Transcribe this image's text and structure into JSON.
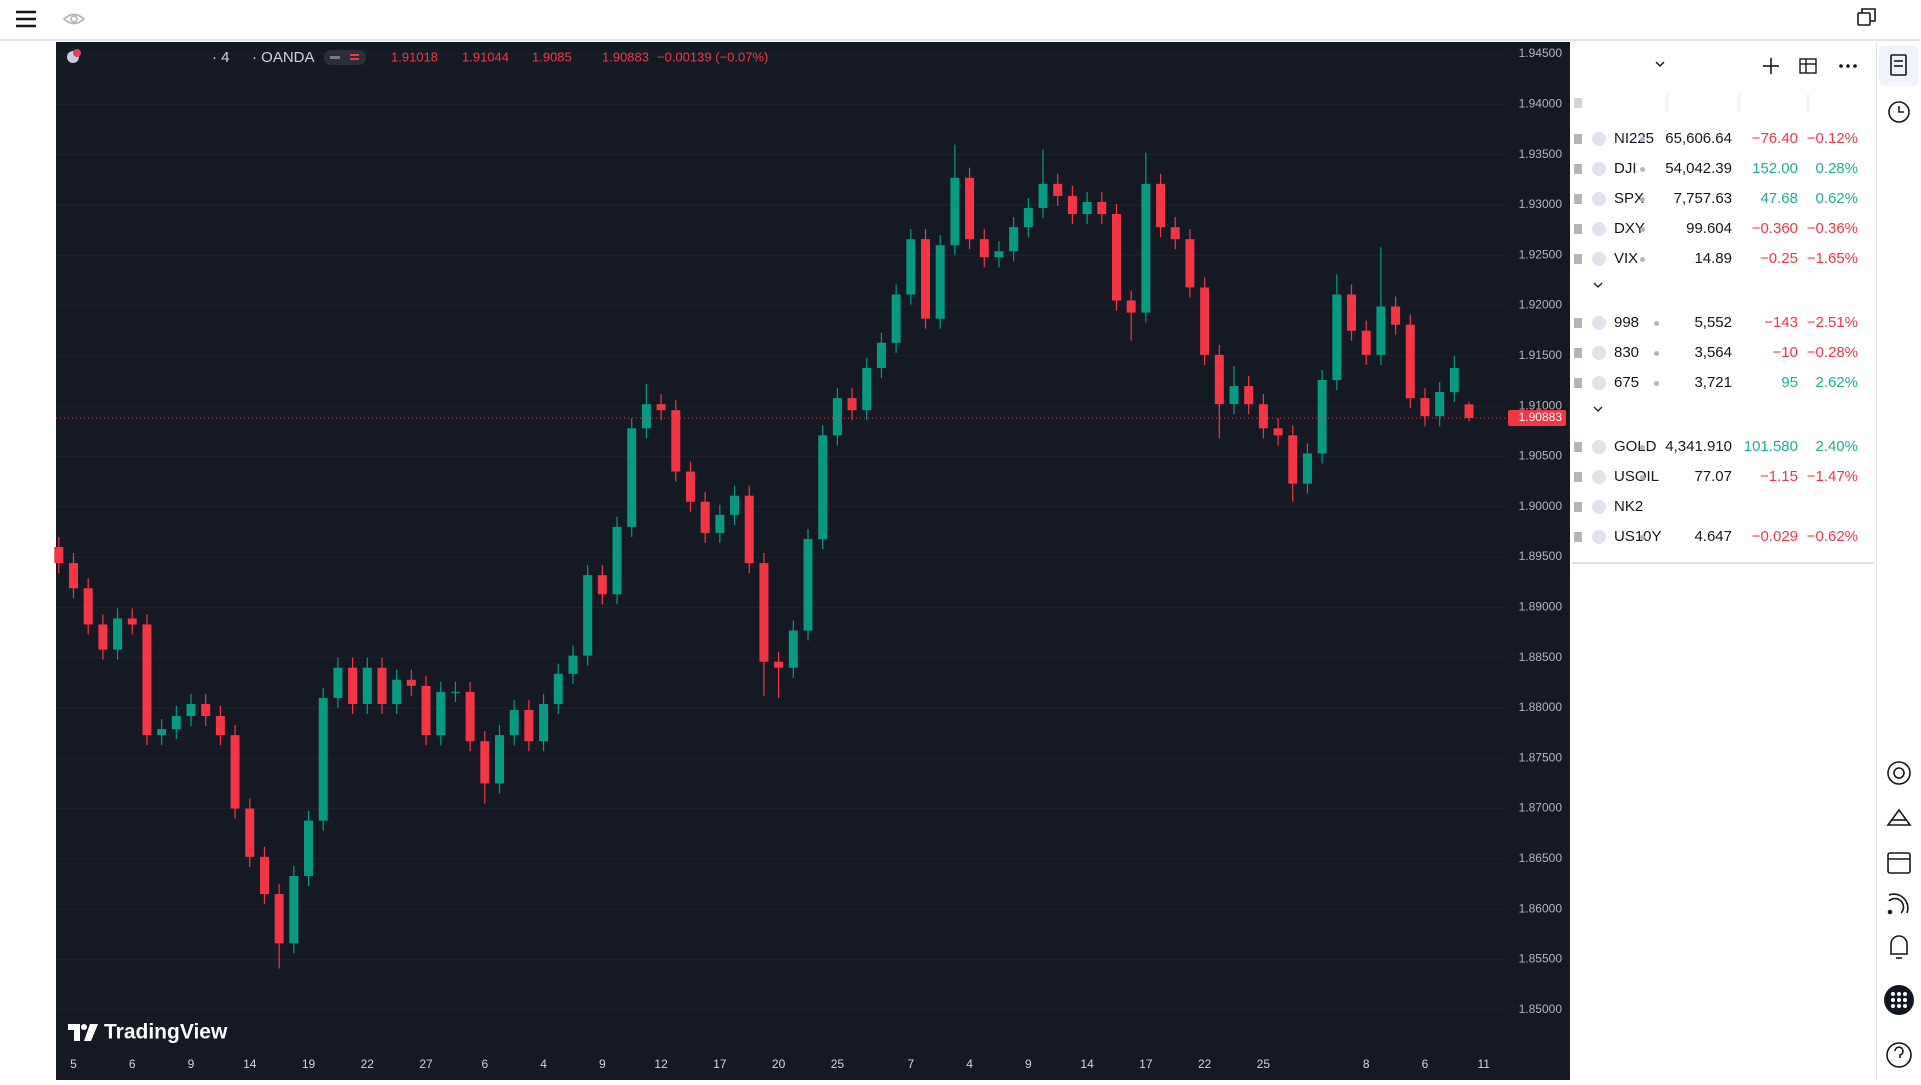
{
  "chart_data": {
    "type": "candlestick",
    "categories": [
      null,
      "5",
      null,
      null,
      null,
      "6",
      null,
      null,
      null,
      "9",
      null,
      null,
      null,
      "14",
      null,
      null,
      null,
      "19",
      null,
      null,
      null,
      "22",
      null,
      null,
      null,
      "27",
      null,
      null,
      null,
      "6",
      null,
      null,
      null,
      "4",
      null,
      null,
      null,
      "9",
      null,
      null,
      null,
      "12",
      null,
      null,
      null,
      "17",
      null,
      null,
      null,
      "20",
      null,
      null,
      null,
      "25",
      null,
      null,
      null,
      null,
      "7",
      null,
      null,
      null,
      "4",
      null,
      null,
      null,
      "9",
      null,
      null,
      null,
      "14",
      null,
      null,
      null,
      "17",
      null,
      null,
      null,
      "22",
      null,
      null,
      null,
      "25",
      null,
      null,
      null,
      null,
      null,
      null,
      "8",
      null,
      null,
      null,
      "6",
      null,
      null,
      null,
      "11"
    ],
    "open": [
      1.896,
      1.8944,
      1.8919,
      1.8883,
      1.8858,
      1.8889,
      1.8883,
      1.8773,
      1.8779,
      1.8792,
      1.8804,
      1.8792,
      1.8773,
      1.87,
      1.8652,
      1.8615,
      1.8566,
      1.8633,
      1.8688,
      1.881,
      1.884,
      1.8804,
      1.884,
      1.8804,
      1.8828,
      1.8822,
      1.8773,
      1.8816,
      1.8816,
      1.8767,
      1.8725,
      1.8773,
      1.8798,
      1.8767,
      1.8804,
      1.8834,
      1.8852,
      1.8932,
      1.8913,
      1.898,
      1.9078,
      1.9102,
      1.9096,
      1.9035,
      1.9005,
      1.8974,
      1.8992,
      1.9011,
      1.8944,
      1.8846,
      1.884,
      1.8877,
      1.8968,
      1.9071,
      1.9108,
      1.9096,
      1.9138,
      1.9163,
      1.9211,
      1.9266,
      1.9187,
      1.926,
      1.9327,
      1.9266,
      1.9248,
      1.9254,
      1.9278,
      1.9297,
      1.9321,
      1.9309,
      1.9291,
      1.9303,
      1.9291,
      1.9205,
      1.9193,
      1.9321,
      1.9278,
      1.9266,
      1.9218,
      1.9151,
      1.9102,
      1.912,
      1.9102,
      1.9078,
      1.9071,
      1.9023,
      1.9053,
      1.9126,
      1.9211,
      1.9175,
      1.9151,
      1.9199,
      1.9181,
      1.9108,
      1.909,
      1.9114,
      1.91018,
      null
    ],
    "high": [
      1.897,
      1.8954,
      1.8929,
      1.8893,
      1.8899,
      1.8899,
      1.8893,
      1.8789,
      1.8802,
      1.8814,
      1.8814,
      1.8802,
      1.8783,
      1.871,
      1.8662,
      1.8625,
      1.8643,
      1.8698,
      1.882,
      1.885,
      1.885,
      1.885,
      1.885,
      1.8838,
      1.8838,
      1.8832,
      1.8826,
      1.8826,
      1.8826,
      1.8777,
      1.8783,
      1.8808,
      1.8808,
      1.8814,
      1.8844,
      1.8862,
      1.8942,
      1.8942,
      1.899,
      1.9088,
      1.9122,
      1.9112,
      1.9106,
      1.9045,
      1.9015,
      1.9002,
      1.9021,
      1.9021,
      1.8954,
      1.8856,
      1.8887,
      1.8978,
      1.9081,
      1.9118,
      1.9118,
      1.9148,
      1.9173,
      1.9221,
      1.9276,
      1.9276,
      1.927,
      1.936,
      1.9337,
      1.9276,
      1.9264,
      1.9288,
      1.9307,
      1.9355,
      1.9331,
      1.9319,
      1.9313,
      1.9313,
      1.9301,
      1.9215,
      1.9352,
      1.9331,
      1.9288,
      1.9276,
      1.9228,
      1.9161,
      1.914,
      1.913,
      1.9112,
      1.9088,
      1.9081,
      1.9063,
      1.9136,
      1.9231,
      1.9221,
      1.9185,
      1.9258,
      1.9209,
      1.9191,
      1.9118,
      1.9124,
      1.915,
      1.91044,
      null
    ],
    "low": [
      1.8934,
      1.8909,
      1.8873,
      1.8848,
      1.8848,
      1.8873,
      1.8763,
      1.8763,
      1.8769,
      1.8782,
      1.8782,
      1.8763,
      1.869,
      1.8642,
      1.8605,
      1.8541,
      1.8556,
      1.8623,
      1.8678,
      1.88,
      1.8794,
      1.8794,
      1.8794,
      1.8794,
      1.8812,
      1.8763,
      1.8763,
      1.8806,
      1.8757,
      1.8705,
      1.8715,
      1.8763,
      1.8757,
      1.8757,
      1.8794,
      1.8824,
      1.8842,
      1.8903,
      1.8903,
      1.897,
      1.9068,
      1.9086,
      1.9025,
      1.8995,
      1.8964,
      1.8964,
      1.8982,
      1.8934,
      1.8812,
      1.881,
      1.883,
      1.8867,
      1.8958,
      1.9061,
      1.9086,
      1.9086,
      1.9128,
      1.9153,
      1.9201,
      1.9177,
      1.9177,
      1.925,
      1.9256,
      1.9238,
      1.9238,
      1.9244,
      1.9268,
      1.9287,
      1.9299,
      1.9281,
      1.9281,
      1.9281,
      1.9195,
      1.9165,
      1.9183,
      1.9268,
      1.9256,
      1.9208,
      1.9141,
      1.9068,
      1.9092,
      1.9092,
      1.9068,
      1.9061,
      1.9005,
      1.9013,
      1.9043,
      1.9116,
      1.9165,
      1.9141,
      1.9141,
      1.9171,
      1.9098,
      1.908,
      1.908,
      1.9104,
      1.9085,
      null
    ],
    "close": [
      1.8944,
      1.8919,
      1.8883,
      1.8858,
      1.8889,
      1.8883,
      1.8773,
      1.8779,
      1.8792,
      1.8804,
      1.8792,
      1.8773,
      1.87,
      1.8652,
      1.8615,
      1.8566,
      1.8633,
      1.8688,
      1.881,
      1.884,
      1.8804,
      1.884,
      1.8804,
      1.8828,
      1.8822,
      1.8773,
      1.8816,
      1.8816,
      1.8767,
      1.8725,
      1.8773,
      1.8798,
      1.8767,
      1.8804,
      1.8834,
      1.8852,
      1.8932,
      1.8913,
      1.898,
      1.9078,
      1.9102,
      1.9096,
      1.9035,
      1.9005,
      1.8974,
      1.8992,
      1.9011,
      1.8944,
      1.8846,
      1.884,
      1.8877,
      1.8968,
      1.9071,
      1.9108,
      1.9096,
      1.9138,
      1.9163,
      1.9211,
      1.9266,
      1.9187,
      1.926,
      1.9327,
      1.9266,
      1.9248,
      1.9254,
      1.9278,
      1.9297,
      1.9321,
      1.9309,
      1.9291,
      1.9303,
      1.9291,
      1.9205,
      1.9193,
      1.9321,
      1.9278,
      1.9266,
      1.9218,
      1.9151,
      1.9102,
      1.912,
      1.9102,
      1.9078,
      1.9071,
      1.9023,
      1.9053,
      1.9126,
      1.9211,
      1.9175,
      1.9151,
      1.9199,
      1.9181,
      1.9108,
      1.909,
      1.9114,
      1.9138,
      1.90883,
      null
    ],
    "up_color": "#089981",
    "down_color": "#f23645",
    "ylim": [
      1.846,
      1.9462
    ],
    "yticks": [
      {
        "value": 1.85,
        "label": "1.85000"
      },
      {
        "value": 1.855,
        "label": "1.85500"
      },
      {
        "value": 1.86,
        "label": "1.86000"
      },
      {
        "value": 1.865,
        "label": "1.86500"
      },
      {
        "value": 1.87,
        "label": "1.87000"
      },
      {
        "value": 1.875,
        "label": "1.87500"
      },
      {
        "value": 1.88,
        "label": "1.88000"
      },
      {
        "value": 1.885,
        "label": "1.88500"
      },
      {
        "value": 1.89,
        "label": "1.89000"
      },
      {
        "value": 1.895,
        "label": "1.89500"
      },
      {
        "value": 1.9,
        "label": "1.90000"
      },
      {
        "value": 1.905,
        "label": "1.90500"
      },
      {
        "value": 1.91,
        "label": "1.91000"
      },
      {
        "value": 1.915,
        "label": "1.91500"
      },
      {
        "value": 1.92,
        "label": "1.92000"
      },
      {
        "value": 1.925,
        "label": "1.92500"
      },
      {
        "value": 1.93,
        "label": "1.93000"
      },
      {
        "value": 1.935,
        "label": "1.93500"
      },
      {
        "value": 1.94,
        "label": "1.94000"
      },
      {
        "value": 1.945,
        "label": "1.94500"
      }
    ],
    "grid": true
  },
  "chart_header": {
    "interval": "· 4",
    "exchange": "· OANDA",
    "change": "−0.00139 (−0.07%)",
    "brand": "TradingView"
  },
  "watchlist": {
    "groups": [
      {
        "rows": [
          {
            "symbol": "NI225",
            "last": "65,606.64",
            "change": "−76.40",
            "change_pct": "−0.12%",
            "color": "#f23645"
          },
          {
            "symbol": "DJI",
            "last": "54,042.39",
            "change": "152.00",
            "change_pct": "0.28%",
            "color": "#22ab94"
          },
          {
            "symbol": "SPX",
            "last": "7,757.63",
            "change": "47.68",
            "change_pct": "0.62%",
            "color": "#22ab94"
          },
          {
            "symbol": "DXY",
            "last": "99.604",
            "change": "−0.360",
            "change_pct": "−0.36%",
            "color": "#f23645"
          },
          {
            "symbol": "VIX",
            "last": "14.89",
            "change": "−0.25",
            "change_pct": "−1.65%",
            "color": "#f23645"
          }
        ]
      },
      {
        "rows": [
          {
            "symbol": "998",
            "last": "5,552",
            "change": "−143",
            "change_pct": "−2.51%",
            "color": "#f23645"
          },
          {
            "symbol": "830",
            "last": "3,564",
            "change": "−10",
            "change_pct": "−0.28%",
            "color": "#f23645"
          },
          {
            "symbol": "675",
            "last": "3,721",
            "change": "95",
            "change_pct": "2.62%",
            "color": "#22ab94"
          }
        ]
      },
      {
        "rows": [
          {
            "symbol": "GOLD",
            "last": "4,341.910",
            "change": "101.580",
            "change_pct": "2.40%",
            "color": "#22ab94"
          },
          {
            "symbol": "USOIL",
            "last": "77.07",
            "change": "−1.15",
            "change_pct": "−1.47%",
            "color": "#f23645"
          },
          {
            "symbol": "NK2"
          },
          {
            "symbol": "US10Y",
            "last": "4.647",
            "change": "−0.029",
            "change_pct": "−0.62%",
            "color": "#f23645"
          }
        ]
      }
    ]
  }
}
